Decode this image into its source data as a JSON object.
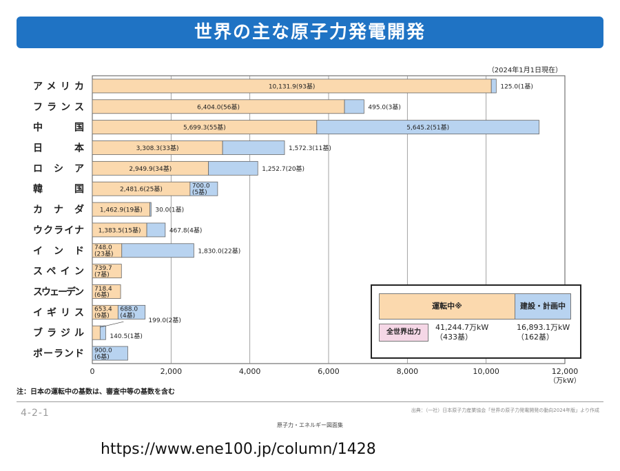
{
  "header": {
    "title": "世界の主な原子力発電開発"
  },
  "as_of": "（2024年1月1日現在）",
  "chart_data": {
    "type": "bar",
    "orientation": "horizontal",
    "stacked": true,
    "xlim": [
      0,
      12000
    ],
    "x_ticks": [
      "0",
      "2,000",
      "4,000",
      "6,000",
      "8,000",
      "10,000",
      "12,000"
    ],
    "x_unit": "（万kW）",
    "grid": true,
    "colors": {
      "operating": "#fbd9ae",
      "planned": "#b8d3f0"
    },
    "series_names": {
      "operating": "運転中※",
      "planned": "建設・計画中"
    },
    "countries": [
      {
        "name": "アメリカ",
        "op": 10131.9,
        "op_label": "10,131.9(93基)",
        "pl": 125.0,
        "pl_label": "125.0(1基)"
      },
      {
        "name": "フランス",
        "op": 6404.0,
        "op_label": "6,404.0(56基)",
        "pl": 495.0,
        "pl_label": "495.0(3基)"
      },
      {
        "name": "中　国",
        "op": 5699.3,
        "op_label": "5,699.3(55基)",
        "pl": 5645.2,
        "pl_label": "5,645.2(51基)"
      },
      {
        "name": "日　本",
        "op": 3308.3,
        "op_label": "3,308.3(33基)",
        "pl": 1572.3,
        "pl_label": "1,572.3(11基)"
      },
      {
        "name": "ロシア",
        "op": 2949.9,
        "op_label": "2,949.9(34基)",
        "pl": 1252.7,
        "pl_label": "1,252.7(20基)"
      },
      {
        "name": "韓　国",
        "op": 2481.6,
        "op_label": "2,481.6(25基)",
        "pl": 700.0,
        "pl_label": "700.0\n(5基)"
      },
      {
        "name": "カナダ",
        "op": 1462.9,
        "op_label": "1,462.9(19基)",
        "pl": 30.0,
        "pl_label": "30.0(1基)"
      },
      {
        "name": "ウクライナ",
        "op": 1383.5,
        "op_label": "1,383.5(15基)",
        "pl": 467.8,
        "pl_label": "467.8(4基)"
      },
      {
        "name": "インド",
        "op": 748.0,
        "op_label": "748.0\n(23基)",
        "pl": 1830.0,
        "pl_label": "1,830.0(22基)"
      },
      {
        "name": "スペイン",
        "op": 739.7,
        "op_label": "739.7\n(7基)",
        "pl": 0,
        "pl_label": ""
      },
      {
        "name": "スウェーデン",
        "op": 718.4,
        "op_label": "718.4\n(6基)",
        "pl": 0,
        "pl_label": ""
      },
      {
        "name": "イギリス",
        "op": 653.4,
        "op_label": "653.4\n(9基)",
        "pl": 688.0,
        "pl_label": "688.0\n(4基)"
      },
      {
        "name": "ブラジル",
        "op": 199.0,
        "op_label": "199.0(2基)",
        "pl": 140.5,
        "pl_label": "140.5(1基)"
      },
      {
        "name": "ポーランド",
        "op": 0,
        "op_label": "",
        "pl": 900.0,
        "pl_label": "900.0\n(6基)"
      }
    ]
  },
  "legend": {
    "operating_label": "運転中※",
    "planned_label": "建設・計画中",
    "total_label": "全世界出力",
    "operating_total": "41,244.7万kW",
    "operating_units": "（433基）",
    "planned_total": "16,893.1万kW",
    "planned_units": "（162基）"
  },
  "note": "注：日本の運転中の基数は、審査中等の基数を含む",
  "page_number": "4-2-1",
  "source": "出典：（一社）日本原子力産業協会「世界の原子力発電開発の動向2024年版」より作成",
  "footer": "原子力・エネルギー図面集",
  "url": "https://www.ene100.jp/column/1428"
}
